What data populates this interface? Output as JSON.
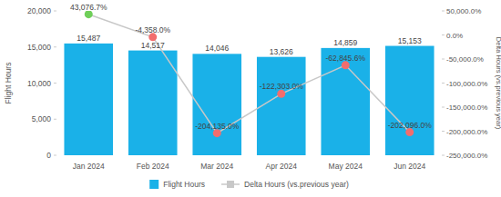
{
  "chart_data": {
    "type": "bar",
    "categories": [
      "Jan 2024",
      "Feb 2024",
      "Mar 2024",
      "Apr 2024",
      "May 2024",
      "Jun 2024"
    ],
    "y_label": "Flight Hours",
    "y2_label": "Delta Hours (vs.previous year)",
    "ylim": [
      0,
      20000
    ],
    "yticks": [
      0,
      {
        "value": 5000,
        "label": "5,000"
      },
      {
        "value": 10000,
        "label": "10,000"
      },
      {
        "value": 15000,
        "label": "15,000"
      },
      {
        "value": 20000,
        "label": "20,000"
      }
    ],
    "y2lim": [
      -250000,
      50000
    ],
    "y2ticks": [
      {
        "value": 50000,
        "label": "50,000.0%"
      },
      {
        "value": 0,
        "label": "0.0%"
      },
      {
        "value": -50000,
        "label": "-50,000.0%"
      },
      {
        "value": -100000,
        "label": "-100,000.0%"
      },
      {
        "value": -150000,
        "label": "-150,000.0%"
      },
      {
        "value": -200000,
        "label": "-200,000.0%"
      },
      {
        "value": -250000,
        "label": "-250,000.0%"
      }
    ],
    "grid": false,
    "legend": "bottom",
    "data_labels": true,
    "series": [
      {
        "name": "Flight Hours",
        "type": "bar",
        "color": "#1ab1e8",
        "values": [
          15487,
          14517,
          14046,
          13626,
          14859,
          15153
        ],
        "value_labels": [
          "15,487",
          "14,517",
          "14,046",
          "13,626",
          "14,859",
          "15,153"
        ]
      },
      {
        "name": "Delta Hours (vs.previous year)",
        "type": "line",
        "axis": "y2",
        "color": "#c8c8c8",
        "marker": "circle",
        "colors": [
          "#6fcf5a",
          "#f26d6d",
          "#f26d6d",
          "#f26d6d",
          "#f26d6d",
          "#f26d6d"
        ],
        "values": [
          43076.7,
          -4358.0,
          -204135.0,
          -122303.0,
          -62845.6,
          -202096.0
        ],
        "value_labels": [
          "43,076.7%",
          "-4,358.0%",
          "-204,135.0%",
          "-122,303.0%",
          "-62,845.6%",
          "-202,096.0%"
        ]
      }
    ]
  }
}
